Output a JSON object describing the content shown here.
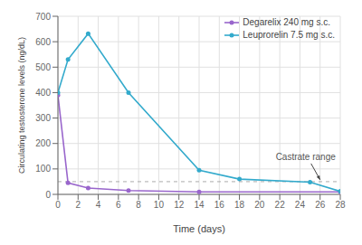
{
  "chart_data": {
    "type": "line",
    "xlabel": "Time (days)",
    "ylabel": "Circulating testosterone levels (ng/dL)",
    "series": [
      {
        "name": "Degarelix 240 mg s.c.",
        "color": "#9966cc",
        "marker": "circle",
        "x": [
          0,
          1,
          3,
          7,
          14,
          28
        ],
        "values": [
          390,
          45,
          25,
          15,
          10,
          10
        ]
      },
      {
        "name": "Leuprorelin 7.5 mg s.c.",
        "color": "#33aacc",
        "marker": "circle",
        "x": [
          0,
          1,
          3,
          7,
          14,
          18,
          25,
          28
        ],
        "values": [
          400,
          530,
          632,
          400,
          95,
          60,
          48,
          12
        ]
      }
    ],
    "xlim": [
      0,
      28
    ],
    "ylim": [
      0,
      700
    ],
    "xticks": [
      0,
      2,
      4,
      6,
      8,
      10,
      12,
      14,
      16,
      18,
      20,
      22,
      24,
      26,
      28
    ],
    "yticks": [
      0,
      100,
      200,
      300,
      400,
      500,
      600,
      700
    ],
    "grid": true,
    "legend": "upper right",
    "reference_lines": [
      {
        "y": 50,
        "color": "#aaaaaa",
        "line_style": "dashed"
      }
    ],
    "annotations": [
      {
        "text": "Castrate range",
        "x": 26,
        "y": 50
      }
    ]
  }
}
